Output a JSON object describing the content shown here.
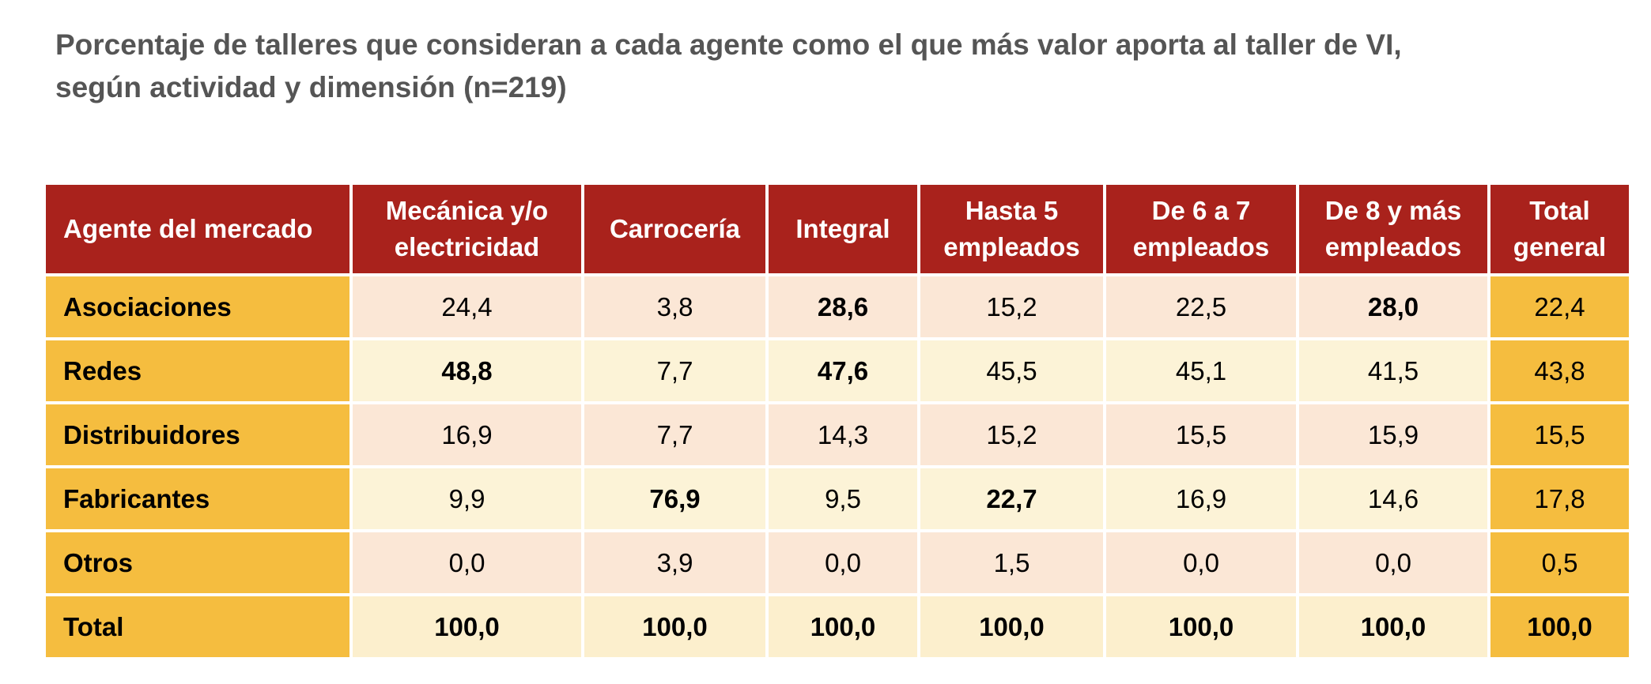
{
  "chart_data": {
    "type": "table",
    "title": "Porcentaje de talleres que consideran a cada agente como el que más valor aporta al taller de VI, según actividad y dimensión (n=219)",
    "title_lines": [
      "Porcentaje de talleres que consideran a cada agente como el que más valor aporta al taller de VI,",
      "según actividad y dimensión (n=219)"
    ],
    "columns": [
      "Agente del mercado",
      "Mecánica y/o electricidad",
      "Carrocería",
      "Integral",
      "Hasta 5 empleados",
      "De 6 a 7 empleados",
      "De 8 y más empleados",
      "Total general"
    ],
    "rows": [
      {
        "agent": "Asociaciones",
        "values": [
          "24,4",
          "3,8",
          "28,6",
          "15,2",
          "22,5",
          "28,0",
          "22,4"
        ],
        "bold": [
          false,
          false,
          true,
          false,
          false,
          true,
          false
        ]
      },
      {
        "agent": "Redes",
        "values": [
          "48,8",
          "7,7",
          "47,6",
          "45,5",
          "45,1",
          "41,5",
          "43,8"
        ],
        "bold": [
          true,
          false,
          true,
          false,
          false,
          false,
          false
        ]
      },
      {
        "agent": "Distribuidores",
        "values": [
          "16,9",
          "7,7",
          "14,3",
          "15,2",
          "15,5",
          "15,9",
          "15,5"
        ],
        "bold": [
          false,
          false,
          false,
          false,
          false,
          false,
          false
        ]
      },
      {
        "agent": "Fabricantes",
        "values": [
          "9,9",
          "76,9",
          "9,5",
          "22,7",
          "16,9",
          "14,6",
          "17,8"
        ],
        "bold": [
          false,
          true,
          false,
          true,
          false,
          false,
          false
        ]
      },
      {
        "agent": "Otros",
        "values": [
          "0,0",
          "3,9",
          "0,0",
          "1,5",
          "0,0",
          "0,0",
          "0,5"
        ],
        "bold": [
          false,
          false,
          false,
          false,
          false,
          false,
          false
        ]
      },
      {
        "agent": "Total",
        "values": [
          "100,0",
          "100,0",
          "100,0",
          "100,0",
          "100,0",
          "100,0",
          "100,0"
        ],
        "bold": [
          true,
          true,
          true,
          true,
          true,
          true,
          true
        ]
      }
    ],
    "colors": {
      "header": "#a9221c",
      "agent_column": "#f5bd3f",
      "total_column": "#f5bd3f",
      "row_shade_a": "#fbe7d6",
      "row_shade_b": "#fcf3d7"
    }
  }
}
